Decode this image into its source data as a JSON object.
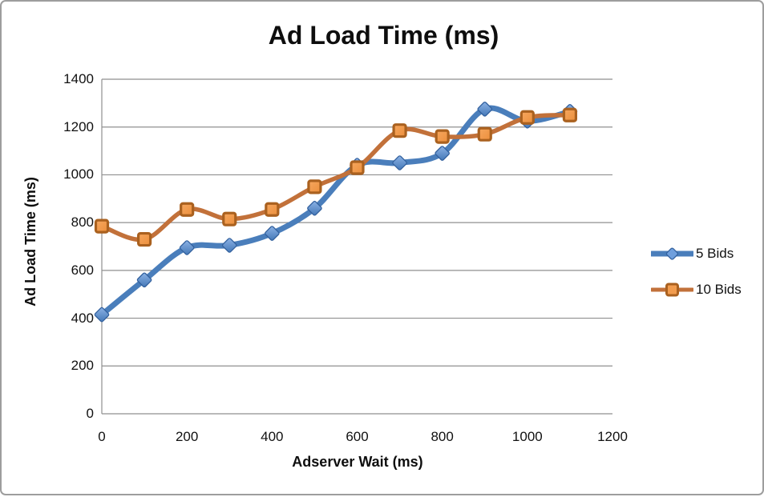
{
  "chart_data": {
    "type": "line",
    "title": "Ad Load Time (ms)",
    "xlabel": "Adserver Wait (ms)",
    "ylabel": "Ad Load Time (ms)",
    "x": [
      0,
      100,
      200,
      300,
      400,
      500,
      600,
      700,
      800,
      900,
      1000,
      1100
    ],
    "series": [
      {
        "name": "5 Bids",
        "marker": "diamond",
        "line_color": "#4a7ebb",
        "marker_fill_light": "#8db3e6",
        "marker_fill_dark": "#4377b6",
        "marker_stroke": "#33619e",
        "line_width": 7,
        "values": [
          415,
          560,
          695,
          705,
          755,
          860,
          1040,
          1050,
          1090,
          1275,
          1225,
          1265
        ]
      },
      {
        "name": "10 Bids",
        "marker": "square",
        "line_color": "#c2713a",
        "marker_fill_light": "#f6a75f",
        "marker_fill_dark": "#ec8f3c",
        "marker_stroke": "#aa611f",
        "line_width": 5.5,
        "values": [
          785,
          730,
          855,
          815,
          855,
          950,
          1030,
          1185,
          1160,
          1170,
          1240,
          1250
        ]
      }
    ],
    "xlim": [
      0,
      1200
    ],
    "ylim": [
      0,
      1400
    ],
    "x_tick_step": 200,
    "y_tick_step": 200,
    "grid": "horizontal",
    "gridline_color": "#8f8f8f",
    "legend_position": "right",
    "smoothed": true
  }
}
